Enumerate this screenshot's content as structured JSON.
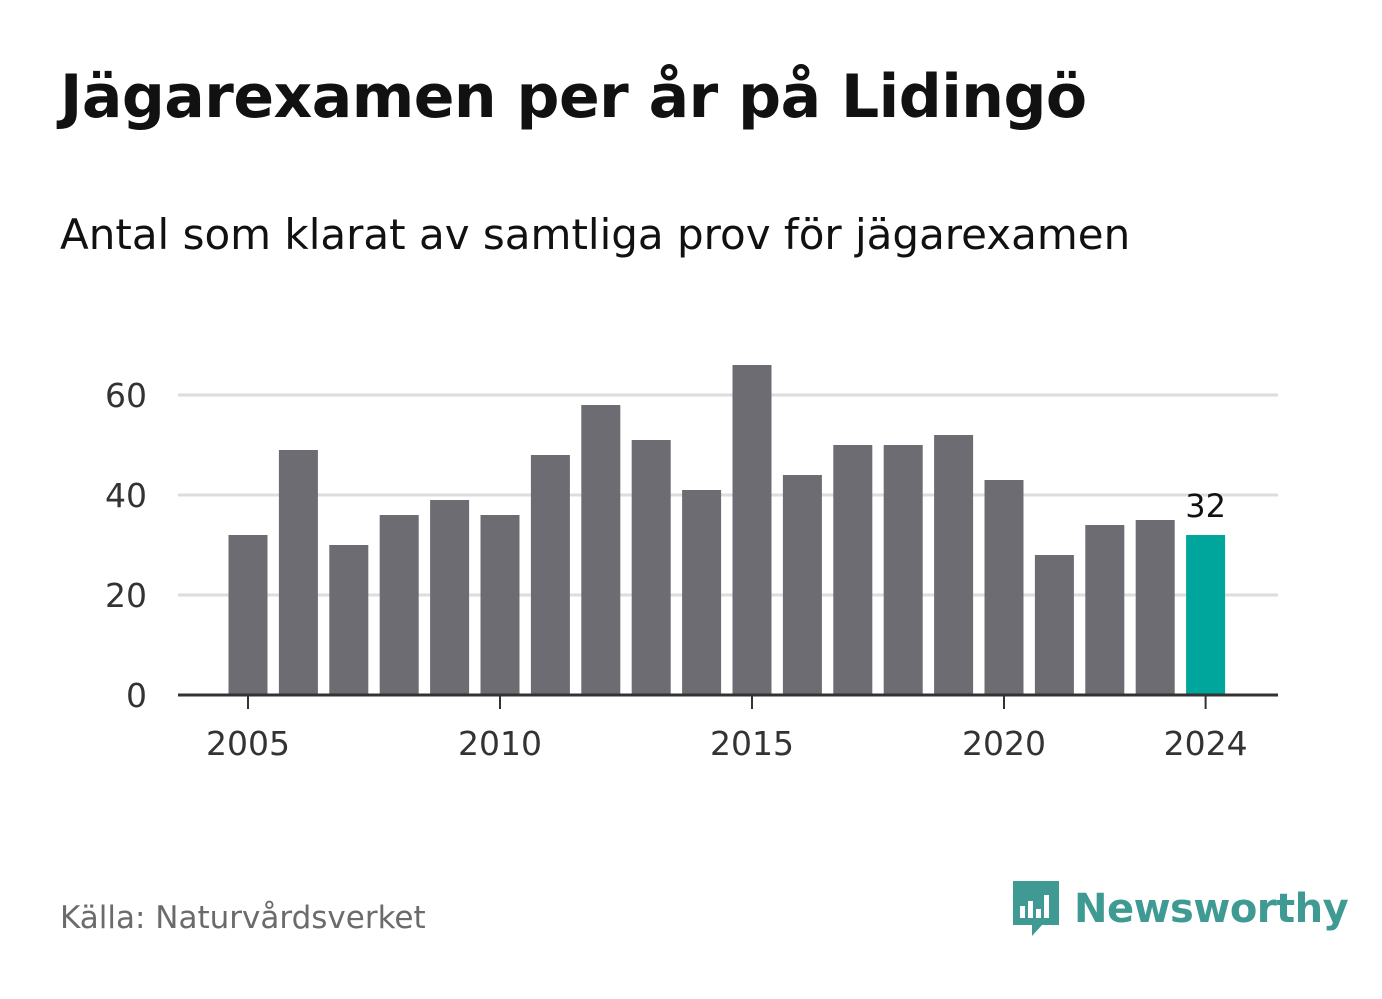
{
  "title": "Jägarexamen per år på Lidingö",
  "subtitle": "Antal som klarat av samtliga prov för jägarexamen",
  "source": "Källa: Naturvårdsverket",
  "brand": {
    "name": "Newsworthy",
    "icon": "newsworthy-logo-icon",
    "color": "#3f9a93"
  },
  "colors": {
    "bar": "#6d6c72",
    "highlight": "#00a59b",
    "grid": "#dddddd",
    "axis": "#333333"
  },
  "chart_data": {
    "type": "bar",
    "x": [
      2005,
      2006,
      2007,
      2008,
      2009,
      2010,
      2011,
      2012,
      2013,
      2014,
      2015,
      2016,
      2017,
      2018,
      2019,
      2020,
      2021,
      2022,
      2023,
      2024
    ],
    "values": [
      32,
      49,
      30,
      36,
      39,
      36,
      48,
      58,
      51,
      41,
      66,
      44,
      50,
      50,
      52,
      43,
      28,
      34,
      35,
      32
    ],
    "x_ticks": [
      "2005",
      "2010",
      "2015",
      "2020",
      "2024"
    ],
    "y_ticks": [
      "0",
      "20",
      "40",
      "60"
    ],
    "ylim": [
      0,
      70
    ],
    "grid": true,
    "highlight": {
      "x": 2024,
      "label": "32"
    }
  }
}
